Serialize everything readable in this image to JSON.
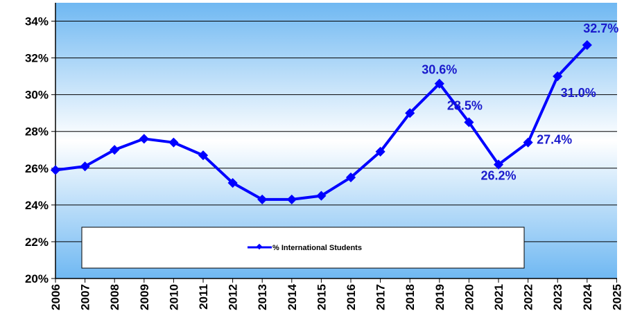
{
  "chart_data": {
    "type": "line",
    "x": [
      "2006",
      "2007",
      "2008",
      "2009",
      "2010",
      "2011",
      "2012",
      "2013",
      "2014",
      "2015",
      "2016",
      "2017",
      "2018",
      "2019",
      "2020",
      "2021",
      "2022",
      "2023",
      "2024"
    ],
    "x_ticks": [
      "2006",
      "2007",
      "2008",
      "2009",
      "2010",
      "2011",
      "2012",
      "2013",
      "2014",
      "2015",
      "2016",
      "2017",
      "2018",
      "2019",
      "2020",
      "2021",
      "2022",
      "2023",
      "2024",
      "2025"
    ],
    "series": [
      {
        "name": "% International Students",
        "values": [
          25.9,
          26.1,
          27.0,
          27.6,
          27.4,
          26.7,
          25.2,
          24.3,
          24.3,
          24.5,
          25.5,
          26.9,
          29.0,
          30.6,
          28.5,
          26.2,
          27.4,
          31.0,
          32.7
        ]
      }
    ],
    "data_labels": [
      {
        "year": "2019",
        "text": "30.6%"
      },
      {
        "year": "2020",
        "text": "28.5%"
      },
      {
        "year": "2021",
        "text": "26.2%"
      },
      {
        "year": "2022",
        "text": "27.4%"
      },
      {
        "year": "2023",
        "text": "31.0%"
      },
      {
        "year": "2024",
        "text": "32.7%"
      }
    ],
    "y_ticks": [
      "20%",
      "22%",
      "24%",
      "26%",
      "28%",
      "30%",
      "32%",
      "34%"
    ],
    "ylim": [
      20,
      35
    ],
    "grid": true,
    "legend_position": "bottom-left inside plot",
    "colors": {
      "line": "#0000ff",
      "label": "#1a1acc",
      "bg_top": "#6fb8f2",
      "bg_mid": "#ffffff"
    }
  }
}
